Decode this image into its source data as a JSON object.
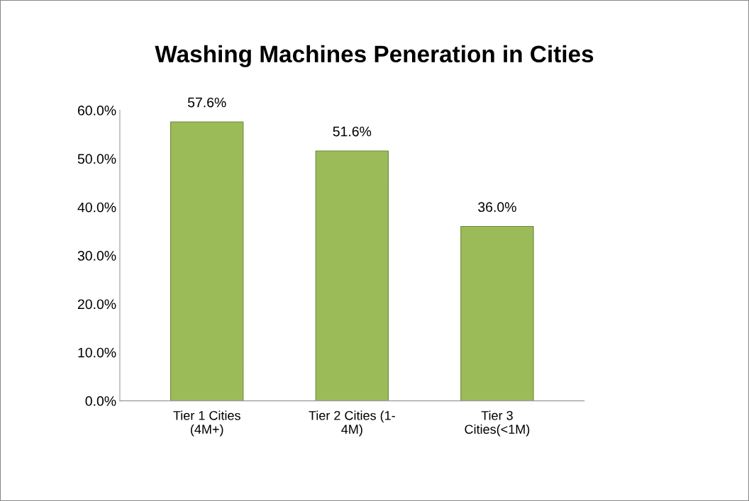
{
  "chart_data": {
    "type": "bar",
    "title": "Washing Machines Peneration in Cities",
    "categories": [
      "Tier 1 Cities\n(4M+)",
      "Tier 2 Cities (1-\n4M)",
      "Tier 3\nCities(<1M)"
    ],
    "values": [
      57.6,
      51.6,
      36.0
    ],
    "value_labels": [
      "57.6%",
      "51.6%",
      "36.0%"
    ],
    "color": "#9bbb59",
    "ylim": [
      0,
      60
    ],
    "yticks": [
      {
        "value": 0,
        "label": "0.0%"
      },
      {
        "value": 10,
        "label": "10.0%"
      },
      {
        "value": 20,
        "label": "20.0%"
      },
      {
        "value": 30,
        "label": "30.0%"
      },
      {
        "value": 40,
        "label": "40.0%"
      },
      {
        "value": 50,
        "label": "50.0%"
      },
      {
        "value": 60,
        "label": "60.0%"
      }
    ],
    "grid": false
  }
}
